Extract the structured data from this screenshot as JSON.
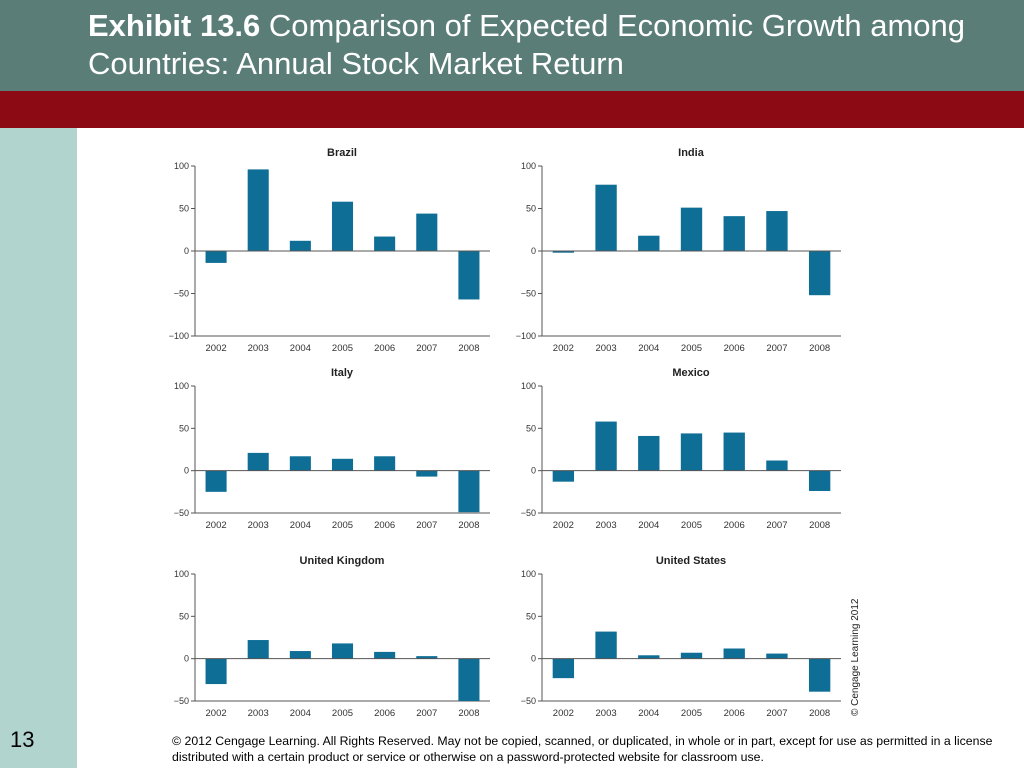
{
  "slide": {
    "title_bold": "Exhibit 13.6",
    "title_rest": " Comparison of Expected Economic Growth among Countries: Annual Stock Market Return",
    "slide_number": "13",
    "vertical_credit": "© Cengage Learning 2012",
    "copyright": "© 2012 Cengage Learning. All Rights Reserved. May not be copied, scanned, or duplicated, in whole or in part, except for use as permitted in a license distributed with a certain product or service or otherwise on a password-protected website for classroom use.",
    "colors": {
      "header": "#5a7d78",
      "red_bar": "#8c0a14",
      "sidebar": "#b2d4cf",
      "bar": "#0e6e96",
      "axis": "#555555"
    }
  },
  "chart_data": [
    {
      "type": "bar",
      "title": "Brazil",
      "categories": [
        "2002",
        "2003",
        "2004",
        "2005",
        "2006",
        "2007",
        "2008"
      ],
      "values": [
        -14,
        96,
        12,
        58,
        17,
        44,
        -57
      ],
      "ylim": [
        -100,
        100
      ],
      "yticks": [
        100,
        50,
        0,
        -50,
        -100
      ],
      "ytick_labels": [
        "100",
        "50",
        "0",
        "−50",
        "−100"
      ]
    },
    {
      "type": "bar",
      "title": "India",
      "categories": [
        "2002",
        "2003",
        "2004",
        "2005",
        "2006",
        "2007",
        "2008"
      ],
      "values": [
        -2,
        78,
        18,
        51,
        41,
        47,
        -52
      ],
      "ylim": [
        -100,
        100
      ],
      "yticks": [
        100,
        50,
        0,
        -50,
        -100
      ],
      "ytick_labels": [
        "100",
        "50",
        "0",
        "−50",
        "−100"
      ]
    },
    {
      "type": "bar",
      "title": "Italy",
      "categories": [
        "2002",
        "2003",
        "2004",
        "2005",
        "2006",
        "2007",
        "2008"
      ],
      "values": [
        -25,
        21,
        17,
        14,
        17,
        -7,
        -49
      ],
      "ylim": [
        -50,
        100
      ],
      "yticks": [
        100,
        50,
        0,
        -50
      ],
      "ytick_labels": [
        "100",
        "50",
        "0",
        "−50"
      ]
    },
    {
      "type": "bar",
      "title": "Mexico",
      "categories": [
        "2002",
        "2003",
        "2004",
        "2005",
        "2006",
        "2007",
        "2008"
      ],
      "values": [
        -13,
        58,
        41,
        44,
        45,
        12,
        -24
      ],
      "ylim": [
        -50,
        100
      ],
      "yticks": [
        100,
        50,
        0,
        -50
      ],
      "ytick_labels": [
        "100",
        "50",
        "0",
        "−50"
      ]
    },
    {
      "type": "bar",
      "title": "United Kingdom",
      "categories": [
        "2002",
        "2003",
        "2004",
        "2005",
        "2006",
        "2007",
        "2008"
      ],
      "values": [
        -30,
        22,
        9,
        18,
        8,
        3,
        -50
      ],
      "ylim": [
        -50,
        100
      ],
      "yticks": [
        100,
        50,
        0,
        -50
      ],
      "ytick_labels": [
        "100",
        "50",
        "0",
        "−50"
      ]
    },
    {
      "type": "bar",
      "title": "United States",
      "categories": [
        "2002",
        "2003",
        "2004",
        "2005",
        "2006",
        "2007",
        "2008"
      ],
      "values": [
        -23,
        32,
        4,
        7,
        12,
        6,
        -39
      ],
      "ylim": [
        -50,
        100
      ],
      "yticks": [
        100,
        50,
        0,
        -50
      ],
      "ytick_labels": [
        "100",
        "50",
        "0",
        "−50"
      ]
    }
  ]
}
